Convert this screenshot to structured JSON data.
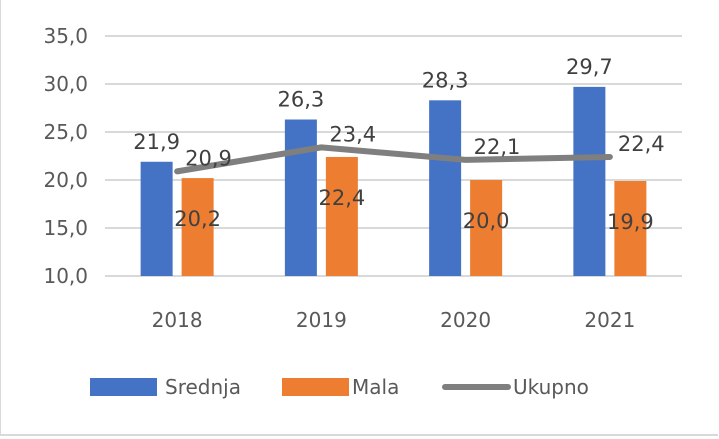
{
  "chart_data": {
    "type": "bar",
    "title": "",
    "xlabel": "",
    "ylabel": "",
    "categories": [
      "2018",
      "2019",
      "2020",
      "2021"
    ],
    "ylim": [
      10,
      35
    ],
    "yticks": [
      "10,0",
      "15,0",
      "20,0",
      "25,0",
      "30,0",
      "35,0"
    ],
    "ytick_values": [
      10,
      15,
      20,
      25,
      30,
      35
    ],
    "grid": true,
    "legend_position": "bottom",
    "series": [
      {
        "name": "Srednja",
        "kind": "bar",
        "color": "#4472c4",
        "values": [
          21.9,
          26.3,
          28.3,
          29.7
        ],
        "labels": [
          "21,9",
          "26,3",
          "28,3",
          "29,7"
        ]
      },
      {
        "name": "Mala",
        "kind": "bar",
        "color": "#ed7d31",
        "values": [
          20.2,
          22.4,
          20.0,
          19.9
        ],
        "labels": [
          "20,2",
          "22,4",
          "20,0",
          "19,9"
        ]
      },
      {
        "name": "Ukupno",
        "kind": "line",
        "color": "#7f7f7f",
        "values": [
          20.9,
          23.4,
          22.1,
          22.4
        ],
        "labels": [
          "20,9",
          "23,4",
          "22,1",
          "22,4"
        ]
      }
    ]
  }
}
